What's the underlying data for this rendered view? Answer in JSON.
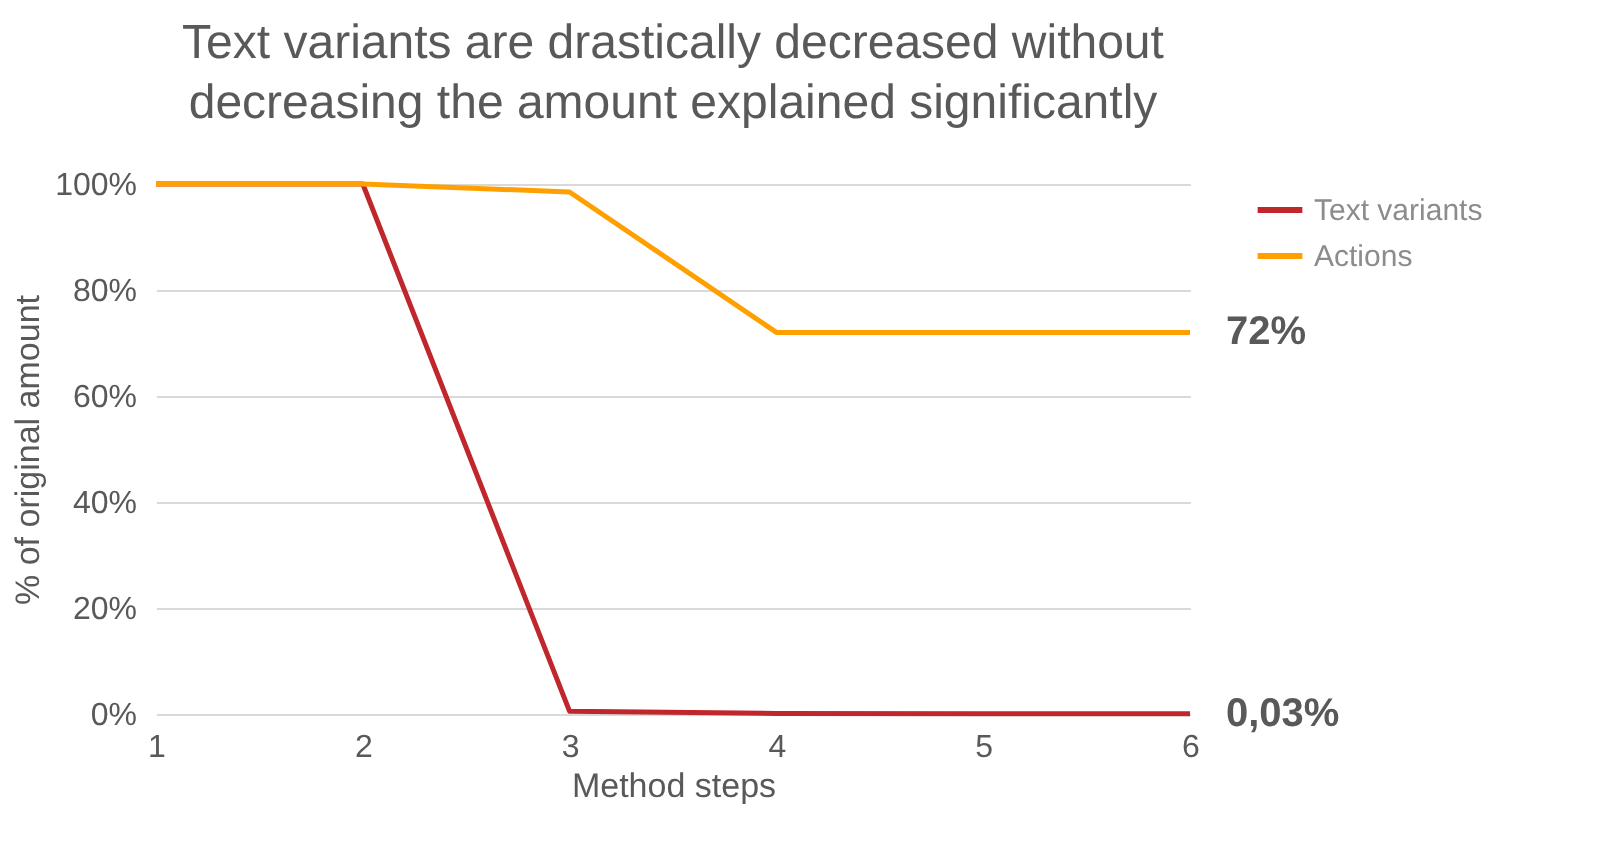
{
  "chart_data": {
    "type": "line",
    "title": "Text variants are drastically decreased without decreasing the amount explained significantly",
    "xlabel": "Method steps",
    "ylabel": "% of original amount",
    "x": [
      1,
      2,
      3,
      4,
      5,
      6
    ],
    "series": [
      {
        "name": "Text variants",
        "color": "#c0272d",
        "values": [
          100,
          100,
          0.5,
          0.1,
          0.05,
          0.03
        ]
      },
      {
        "name": "Actions",
        "color": "#ffa000",
        "values": [
          100,
          100,
          98.5,
          72,
          72,
          72
        ]
      }
    ],
    "xlim": [
      1,
      6
    ],
    "xticks": [
      1,
      2,
      3,
      4,
      5,
      6
    ],
    "ylim": [
      0,
      100
    ],
    "yticks": [
      {
        "value": 0,
        "label": "0%"
      },
      {
        "value": 20,
        "label": "20%"
      },
      {
        "value": 40,
        "label": "40%"
      },
      {
        "value": 60,
        "label": "60%"
      },
      {
        "value": 80,
        "label": "80%"
      },
      {
        "value": 100,
        "label": "100%"
      }
    ],
    "annotations": [
      {
        "text": "72%",
        "x": 6,
        "y": 72
      },
      {
        "text": "0,03%",
        "x": 6,
        "y": 0.03
      }
    ],
    "grid": "y",
    "legend": "right",
    "marker": "none",
    "line_style": "solid"
  }
}
